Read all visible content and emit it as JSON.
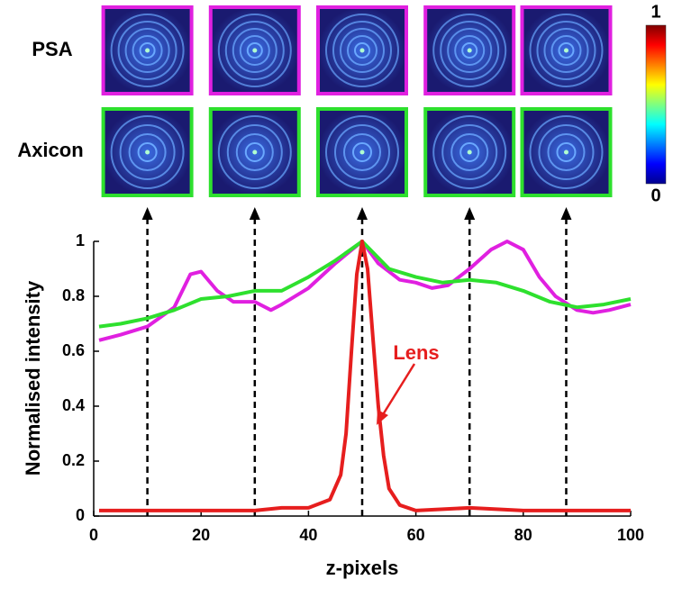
{
  "chart_data": {
    "type": "line",
    "xlabel": "z-pixels",
    "ylabel": "Normalised intensity",
    "xlim": [
      0,
      100
    ],
    "ylim": [
      0,
      1
    ],
    "xticks": [
      0,
      20,
      40,
      60,
      80,
      100
    ],
    "yticks": [
      0,
      0.2,
      0.4,
      0.6,
      0.8,
      1
    ],
    "arrow_x": [
      10,
      30,
      50,
      70,
      88
    ],
    "colorbar_ticks": [
      0,
      1
    ],
    "series": [
      {
        "name": "PSA",
        "color": "#e020e0",
        "x": [
          1,
          5,
          10,
          15,
          18,
          20,
          23,
          26,
          30,
          33,
          35,
          40,
          45,
          50,
          53,
          57,
          60,
          63,
          66,
          70,
          74,
          77,
          80,
          83,
          86,
          90,
          93,
          96,
          100
        ],
        "values": [
          0.64,
          0.66,
          0.69,
          0.76,
          0.88,
          0.89,
          0.82,
          0.78,
          0.78,
          0.75,
          0.77,
          0.83,
          0.92,
          1.0,
          0.92,
          0.86,
          0.85,
          0.83,
          0.84,
          0.9,
          0.97,
          1.0,
          0.97,
          0.87,
          0.8,
          0.75,
          0.74,
          0.75,
          0.77
        ]
      },
      {
        "name": "Axicon",
        "color": "#2ee02e",
        "x": [
          1,
          5,
          10,
          15,
          20,
          25,
          30,
          35,
          40,
          45,
          50,
          55,
          60,
          65,
          70,
          75,
          80,
          85,
          90,
          95,
          100
        ],
        "values": [
          0.69,
          0.7,
          0.72,
          0.75,
          0.79,
          0.8,
          0.82,
          0.82,
          0.87,
          0.93,
          1.0,
          0.9,
          0.87,
          0.85,
          0.86,
          0.85,
          0.82,
          0.78,
          0.76,
          0.77,
          0.79
        ]
      },
      {
        "name": "Lens",
        "color": "#e61e1e",
        "x": [
          1,
          10,
          20,
          30,
          35,
          40,
          44,
          46,
          47,
          48,
          49,
          50,
          51,
          52,
          53,
          54,
          55,
          57,
          60,
          70,
          80,
          90,
          100
        ],
        "values": [
          0.02,
          0.02,
          0.02,
          0.02,
          0.03,
          0.03,
          0.06,
          0.15,
          0.3,
          0.6,
          0.88,
          1.0,
          0.9,
          0.65,
          0.4,
          0.22,
          0.1,
          0.04,
          0.02,
          0.03,
          0.02,
          0.02,
          0.02
        ]
      }
    ]
  }
}
